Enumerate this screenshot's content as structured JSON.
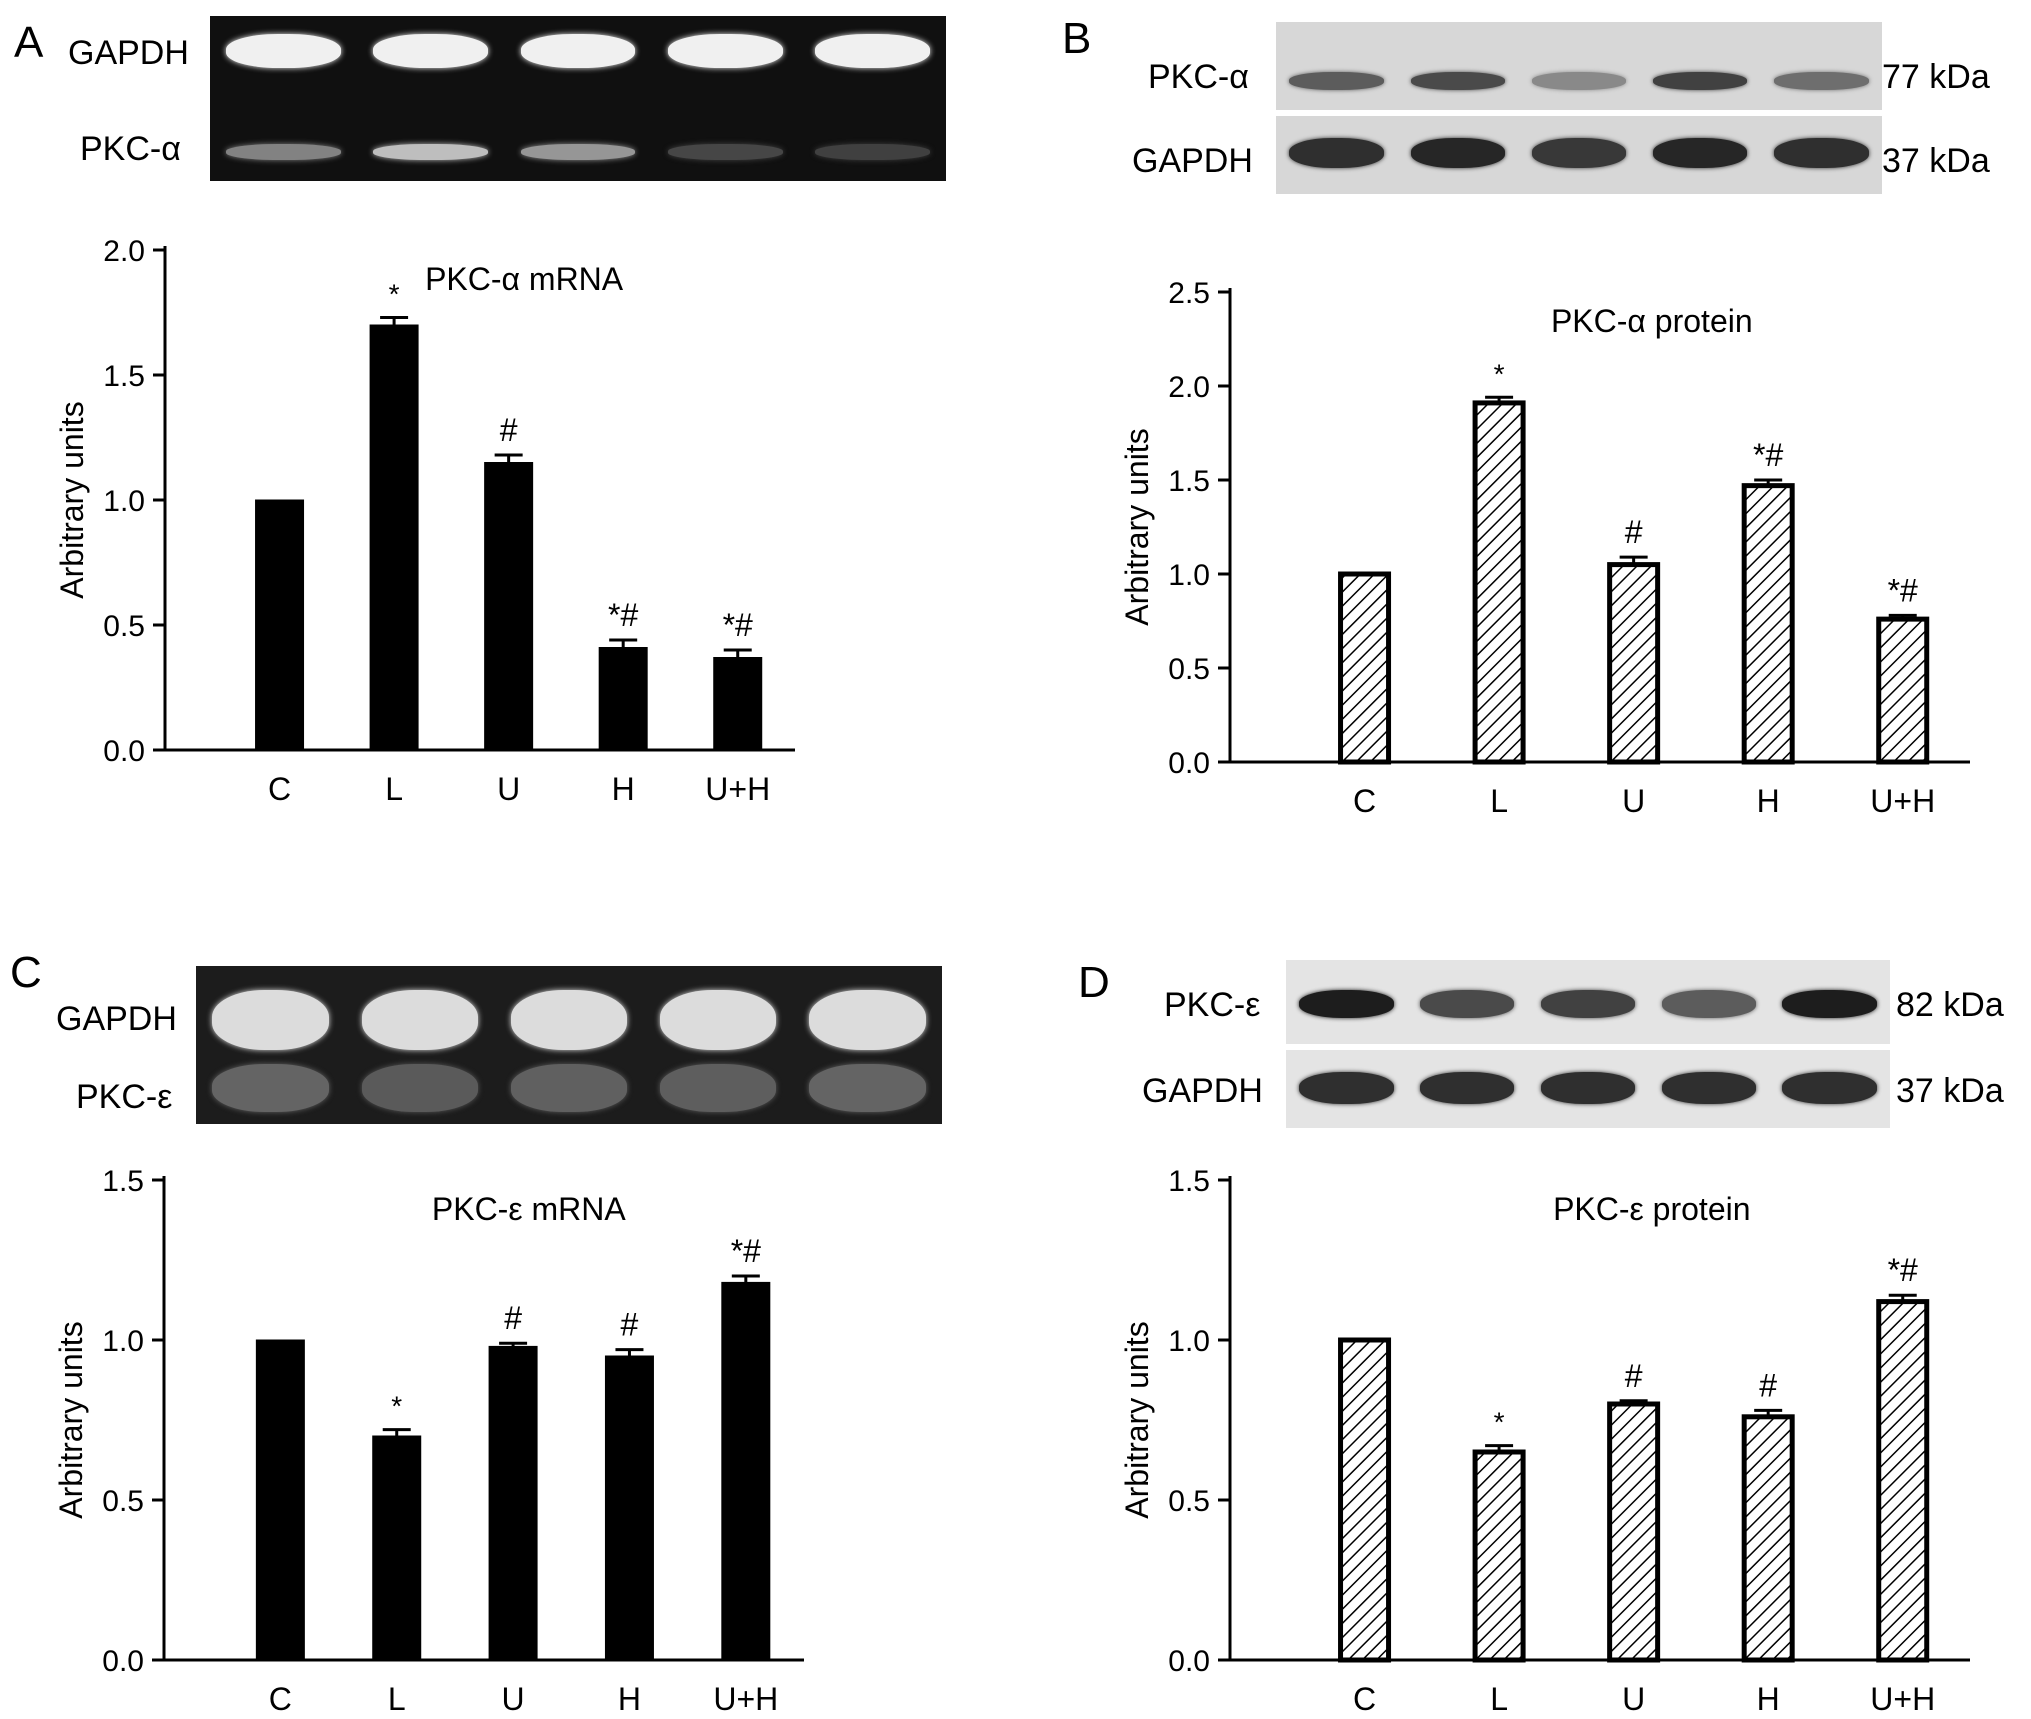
{
  "panels": [
    {
      "letter": "A",
      "blot": {
        "kind": "gel",
        "rows": [
          {
            "label": "GAPDH",
            "intensities": [
              1.0,
              1.0,
              1.0,
              1.0,
              1.0
            ]
          },
          {
            "label": "PKC-α",
            "intensities": [
              0.45,
              0.75,
              0.55,
              0.15,
              0.12
            ]
          }
        ]
      },
      "chart_data": {
        "type": "bar",
        "title": "PKC-α mRNA",
        "ylabel": "Arbitrary units",
        "xlabel": "",
        "categories": [
          "C",
          "L",
          "U",
          "H",
          "U+H"
        ],
        "values": [
          1.0,
          1.7,
          1.15,
          0.41,
          0.37
        ],
        "errors": [
          0.0,
          0.03,
          0.03,
          0.03,
          0.03
        ],
        "annotations": [
          "",
          "*",
          "#",
          "*#",
          "*#"
        ],
        "ylim": [
          0,
          2.0
        ],
        "yticks": [
          "0.0",
          "0.5",
          "1.0",
          "1.5",
          "2.0"
        ],
        "fill": "solid",
        "bar_color": "#000000"
      }
    },
    {
      "letter": "B",
      "blot": {
        "kind": "western",
        "rows": [
          {
            "label": "PKC-α",
            "kda": "77 kDa",
            "intensities": [
              0.6,
              0.7,
              0.35,
              0.75,
              0.5
            ]
          },
          {
            "label": "GAPDH",
            "kda": "37 kDa",
            "intensities": [
              0.85,
              0.9,
              0.8,
              0.9,
              0.85
            ]
          }
        ]
      },
      "chart_data": {
        "type": "bar",
        "title": "PKC-α protein",
        "ylabel": "Arbitrary units",
        "xlabel": "",
        "categories": [
          "C",
          "L",
          "U",
          "H",
          "U+H"
        ],
        "values": [
          1.0,
          1.91,
          1.05,
          1.47,
          0.76
        ],
        "errors": [
          0.0,
          0.03,
          0.04,
          0.03,
          0.02
        ],
        "annotations": [
          "",
          "*",
          "#",
          "*#",
          "*#"
        ],
        "ylim": [
          0,
          2.5
        ],
        "yticks": [
          "0.0",
          "0.5",
          "1.0",
          "1.5",
          "2.0",
          "2.5"
        ],
        "fill": "hatched",
        "bar_color": "#000000"
      }
    },
    {
      "letter": "C",
      "blot": {
        "kind": "gel",
        "rows": [
          {
            "label": "GAPDH",
            "intensities": [
              0.9,
              0.9,
              0.9,
              0.9,
              0.9
            ]
          },
          {
            "label": "PKC-ε",
            "intensities": [
              0.3,
              0.25,
              0.28,
              0.27,
              0.3
            ]
          }
        ]
      },
      "chart_data": {
        "type": "bar",
        "title": "PKC-ε mRNA",
        "ylabel": "Arbitrary units",
        "xlabel": "",
        "categories": [
          "C",
          "L",
          "U",
          "H",
          "U+H"
        ],
        "values": [
          1.0,
          0.7,
          0.98,
          0.95,
          1.18
        ],
        "errors": [
          0.0,
          0.02,
          0.01,
          0.02,
          0.02
        ],
        "annotations": [
          "",
          "*",
          "#",
          "#",
          "*#"
        ],
        "ylim": [
          0,
          1.5
        ],
        "yticks": [
          "0.0",
          "0.5",
          "1.0",
          "1.5"
        ],
        "fill": "solid",
        "bar_color": "#000000"
      }
    },
    {
      "letter": "D",
      "blot": {
        "kind": "western",
        "rows": [
          {
            "label": "PKC-ε",
            "kda": "82 kDa",
            "intensities": [
              0.95,
              0.7,
              0.75,
              0.6,
              0.95
            ]
          },
          {
            "label": "GAPDH",
            "kda": "37 kDa",
            "intensities": [
              0.85,
              0.85,
              0.85,
              0.85,
              0.85
            ]
          }
        ]
      },
      "chart_data": {
        "type": "bar",
        "title": "PKC-ε protein",
        "ylabel": "Arbitrary units",
        "xlabel": "",
        "categories": [
          "C",
          "L",
          "U",
          "H",
          "U+H"
        ],
        "values": [
          1.0,
          0.65,
          0.8,
          0.76,
          1.12
        ],
        "errors": [
          0.0,
          0.02,
          0.01,
          0.02,
          0.02
        ],
        "annotations": [
          "",
          "*",
          "#",
          "#",
          "*#"
        ],
        "ylim": [
          0,
          1.5
        ],
        "yticks": [
          "0.0",
          "0.5",
          "1.0",
          "1.5"
        ],
        "fill": "hatched",
        "bar_color": "#000000"
      }
    }
  ]
}
